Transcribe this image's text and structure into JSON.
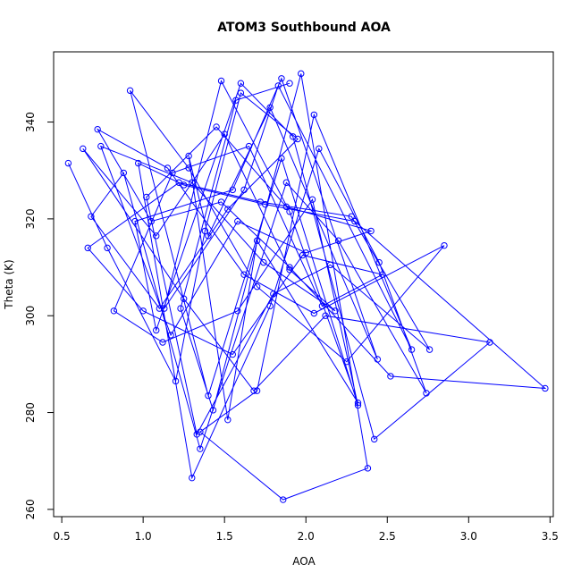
{
  "chart_data": {
    "type": "line",
    "title": "ATOM3 Southbound AOA",
    "xlabel": "AOA",
    "ylabel": "Theta (K)",
    "xlim": [
      0.45,
      3.52
    ],
    "ylim": [
      258.5,
      354.5
    ],
    "xticks": [
      0.5,
      1.0,
      1.5,
      2.0,
      2.5,
      3.0,
      3.5
    ],
    "xtick_labels": [
      "0.5",
      "1.0",
      "1.5",
      "2.0",
      "2.5",
      "3.0",
      "3.5"
    ],
    "yticks": [
      260,
      280,
      300,
      320,
      340
    ],
    "ytick_labels": [
      "260",
      "280",
      "300",
      "320",
      "340"
    ],
    "grid": false,
    "series": [
      {
        "color": "#0000ff",
        "marker": "open-circle",
        "x": [
          0.54,
          0.78,
          1.2,
          1.38,
          1.6,
          1.95,
          1.52,
          1.1,
          0.68,
          0.88,
          1.35,
          1.88,
          2.2,
          2.74,
          2.45,
          2.08,
          1.78,
          1.3,
          0.97,
          1.25,
          1.75,
          2.3,
          3.47,
          2.52,
          1.9,
          1.48,
          1.05,
          0.72,
          1.15,
          1.62,
          2.05,
          2.85,
          2.25,
          1.7,
          1.28,
          0.92,
          1.4,
          1.85,
          2.32,
          2.04,
          1.58,
          1.12,
          0.82,
          1.18,
          1.65,
          2.1,
          2.47,
          1.98,
          1.55,
          1.0,
          0.66,
          1.22,
          1.72,
          2.28,
          2.76,
          2.15,
          1.8,
          1.33,
          1.02,
          1.45,
          1.88,
          2.4,
          2.0,
          1.58,
          1.17,
          0.74,
          1.3,
          1.74,
          2.18,
          1.9,
          1.5,
          1.08,
          0.63,
          1.25,
          1.68,
          2.12,
          3.13,
          2.42,
          1.92,
          1.6,
          1.08,
          0.95,
          1.55,
          1.85,
          2.44,
          1.78,
          1.4,
          1.28,
          1.52,
          1.7,
          2.32,
          1.9,
          1.48,
          1.13,
          1.62,
          1.83,
          2.65,
          2.05,
          1.7,
          1.35,
          1.86,
          2.38,
          1.97,
          1.43,
          1.23,
          1.57,
          1.9
        ],
        "y": [
          331.5,
          314.0,
          286.5,
          317.5,
          346.0,
          336.5,
          322.0,
          301.5,
          320.5,
          329.5,
          272.5,
          327.5,
          315.5,
          284.0,
          311.0,
          334.5,
          302.0,
          266.5,
          331.5,
          327.0,
          323.0,
          319.5,
          285.0,
          287.5,
          310.0,
          323.5,
          319.5,
          338.5,
          330.5,
          308.5,
          300.5,
          314.5,
          290.5,
          306.0,
          330.5,
          346.5,
          283.5,
          332.5,
          281.5,
          324.0,
          301.0,
          294.5,
          301.0,
          329.5,
          335.0,
          302.0,
          308.5,
          312.5,
          292.0,
          301.0,
          314.0,
          327.5,
          323.5,
          320.5,
          293.0,
          310.5,
          304.5,
          275.5,
          324.5,
          339.0,
          322.5,
          317.5,
          313.0,
          319.5,
          296.0,
          335.0,
          327.5,
          311.0,
          301.0,
          309.5,
          337.5,
          316.5,
          334.5,
          303.5,
          284.5,
          300.0,
          294.5,
          274.5,
          337.0,
          348.0,
          297.0,
          319.5,
          326.0,
          349.0,
          291.0,
          343.0,
          316.5,
          333.0,
          278.5,
          315.5,
          282.0,
          321.5,
          348.5,
          301.5,
          326.0,
          347.5,
          293.0,
          341.5,
          284.5,
          276.0,
          262.0,
          268.5,
          350.0,
          280.5,
          301.5,
          344.5,
          348.0
        ]
      }
    ]
  }
}
